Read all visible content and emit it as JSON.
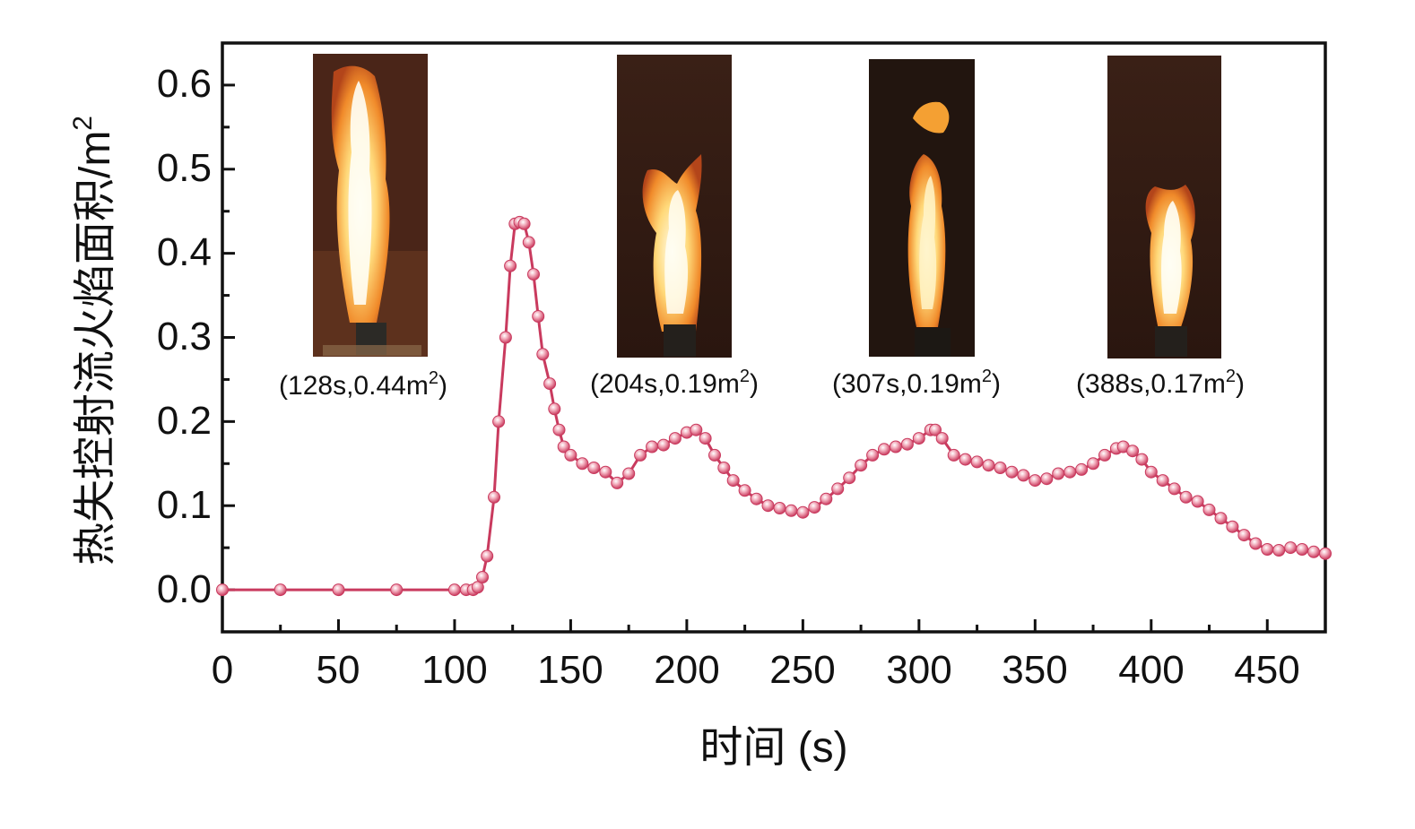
{
  "chart_data": {
    "type": "line",
    "xlabel": "时间 (s)",
    "ylabel": "热失控射流火焰面积/m",
    "ylabel_sup": "2",
    "xlim": [
      0,
      475
    ],
    "ylim": [
      -0.05,
      0.65
    ],
    "xticks": [
      0,
      50,
      100,
      150,
      200,
      250,
      300,
      350,
      400,
      450
    ],
    "yticks": [
      0.0,
      0.1,
      0.2,
      0.3,
      0.4,
      0.5,
      0.6
    ],
    "ytick_labels": [
      "0.0",
      "0.1",
      "0.2",
      "0.3",
      "0.4",
      "0.5",
      "0.6"
    ],
    "grid": false,
    "series_color": "#c93a5e",
    "marker_color": "#e58aa0",
    "x": [
      0,
      25,
      50,
      75,
      100,
      105,
      108,
      110,
      112,
      114,
      117,
      119,
      122,
      124,
      126,
      128,
      130,
      132,
      134,
      136,
      138,
      141,
      143,
      145,
      147,
      150,
      155,
      160,
      165,
      170,
      175,
      180,
      185,
      190,
      195,
      200,
      204,
      208,
      212,
      216,
      220,
      225,
      230,
      235,
      240,
      245,
      250,
      255,
      260,
      265,
      270,
      275,
      280,
      285,
      290,
      295,
      300,
      305,
      307,
      310,
      315,
      320,
      325,
      330,
      335,
      340,
      345,
      350,
      355,
      360,
      365,
      370,
      375,
      380,
      385,
      388,
      392,
      396,
      400,
      405,
      410,
      415,
      420,
      425,
      430,
      435,
      440,
      445,
      450,
      455,
      460,
      465,
      470,
      475
    ],
    "y": [
      0.0,
      0.0,
      0.0,
      0.0,
      0.0,
      0.0,
      0.0,
      0.003,
      0.015,
      0.04,
      0.11,
      0.2,
      0.3,
      0.385,
      0.435,
      0.437,
      0.435,
      0.413,
      0.375,
      0.325,
      0.28,
      0.245,
      0.215,
      0.19,
      0.17,
      0.16,
      0.15,
      0.145,
      0.14,
      0.127,
      0.138,
      0.16,
      0.17,
      0.172,
      0.18,
      0.187,
      0.19,
      0.18,
      0.16,
      0.145,
      0.13,
      0.118,
      0.108,
      0.1,
      0.097,
      0.094,
      0.092,
      0.098,
      0.108,
      0.12,
      0.133,
      0.148,
      0.16,
      0.167,
      0.17,
      0.173,
      0.18,
      0.19,
      0.19,
      0.18,
      0.16,
      0.155,
      0.152,
      0.148,
      0.145,
      0.14,
      0.136,
      0.13,
      0.132,
      0.138,
      0.14,
      0.143,
      0.15,
      0.16,
      0.168,
      0.17,
      0.165,
      0.155,
      0.14,
      0.13,
      0.12,
      0.11,
      0.105,
      0.095,
      0.085,
      0.075,
      0.065,
      0.055,
      0.048,
      0.047,
      0.05,
      0.048,
      0.045,
      0.043
    ]
  },
  "insets": [
    {
      "caption_pre": "(128s,0.44m",
      "caption_sup": "2",
      "caption_post": ")",
      "image": "flame-photo-128s"
    },
    {
      "caption_pre": "(204s,0.19m",
      "caption_sup": "2",
      "caption_post": ")",
      "image": "flame-photo-204s"
    },
    {
      "caption_pre": "(307s,0.19m",
      "caption_sup": "2",
      "caption_post": ")",
      "image": "flame-photo-307s"
    },
    {
      "caption_pre": "(388s,0.17m",
      "caption_sup": "2",
      "caption_post": ")",
      "image": "flame-photo-388s"
    }
  ]
}
